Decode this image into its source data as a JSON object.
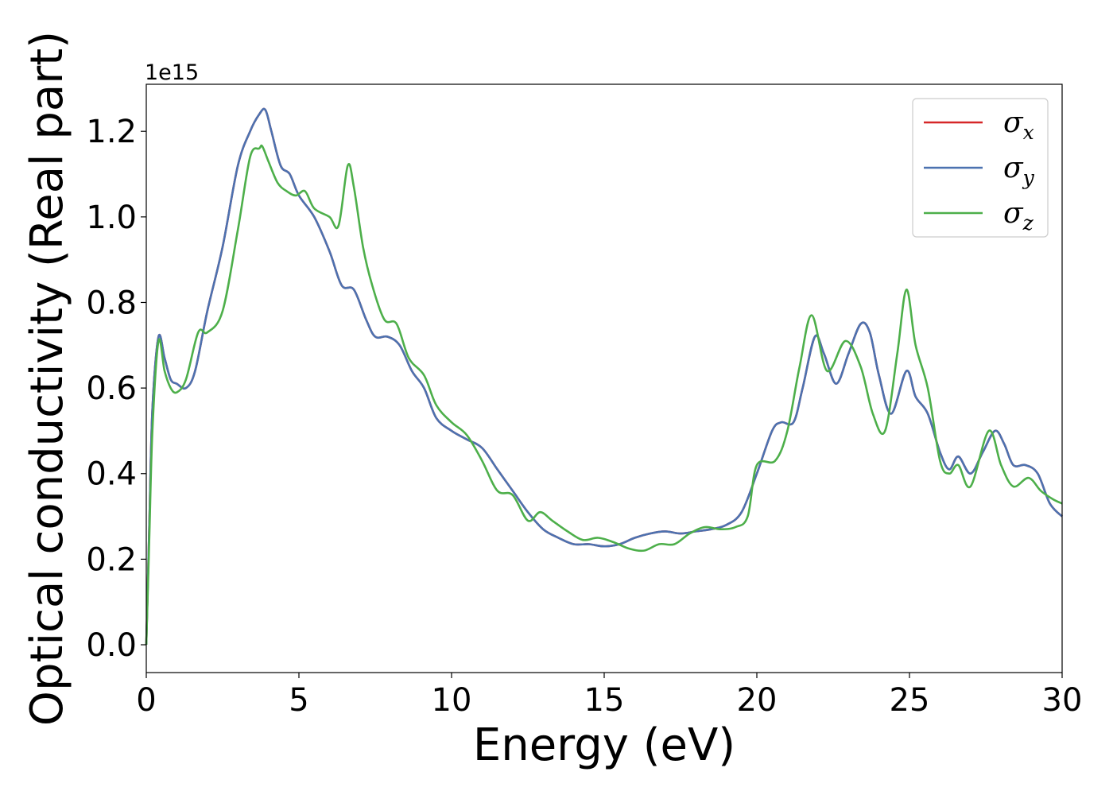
{
  "chart_data": {
    "type": "line",
    "xlabel": "Energy (eV)",
    "ylabel": "Optical conductivity (Real part)",
    "y_offset_text": "1e15",
    "xlim": [
      0,
      30
    ],
    "ylim": [
      -0.065,
      1.31
    ],
    "xticks": [
      0,
      5,
      10,
      15,
      20,
      25,
      30
    ],
    "xtick_labels": [
      "0",
      "5",
      "10",
      "15",
      "20",
      "25",
      "30"
    ],
    "yticks": [
      0.0,
      0.2,
      0.4,
      0.6,
      0.8,
      1.0,
      1.2
    ],
    "ytick_labels": [
      "0.0",
      "0.2",
      "0.4",
      "0.6",
      "0.8",
      "1.0",
      "1.2"
    ],
    "grid": false,
    "legend": {
      "position": "top-right",
      "entries": [
        {
          "symbol": "σ",
          "subscript": "x",
          "color": "#d62728"
        },
        {
          "symbol": "σ",
          "subscript": "y",
          "color": "#4c72b0"
        },
        {
          "symbol": "σ",
          "subscript": "z",
          "color": "#4daf4a"
        }
      ]
    },
    "series": [
      {
        "id": "sigma_x",
        "color": "#d62728",
        "points": [
          [
            0,
            0
          ],
          [
            0.1,
            0.28
          ],
          [
            0.2,
            0.55
          ],
          [
            0.4,
            0.72
          ],
          [
            0.6,
            0.67
          ],
          [
            0.8,
            0.62
          ],
          [
            1.0,
            0.61
          ],
          [
            1.3,
            0.6
          ],
          [
            1.6,
            0.64
          ],
          [
            2.0,
            0.78
          ],
          [
            2.5,
            0.93
          ],
          [
            3.0,
            1.12
          ],
          [
            3.4,
            1.2
          ],
          [
            3.7,
            1.24
          ],
          [
            3.9,
            1.25
          ],
          [
            4.1,
            1.2
          ],
          [
            4.4,
            1.12
          ],
          [
            4.7,
            1.1
          ],
          [
            5.0,
            1.05
          ],
          [
            5.5,
            1.0
          ],
          [
            6.0,
            0.92
          ],
          [
            6.4,
            0.84
          ],
          [
            6.8,
            0.83
          ],
          [
            7.2,
            0.76
          ],
          [
            7.5,
            0.72
          ],
          [
            7.9,
            0.72
          ],
          [
            8.3,
            0.7
          ],
          [
            8.7,
            0.64
          ],
          [
            9.1,
            0.6
          ],
          [
            9.5,
            0.53
          ],
          [
            10.0,
            0.5
          ],
          [
            10.5,
            0.48
          ],
          [
            11.0,
            0.46
          ],
          [
            11.5,
            0.41
          ],
          [
            12.0,
            0.36
          ],
          [
            12.5,
            0.31
          ],
          [
            13.0,
            0.27
          ],
          [
            13.5,
            0.25
          ],
          [
            14.0,
            0.235
          ],
          [
            14.5,
            0.235
          ],
          [
            15.0,
            0.23
          ],
          [
            15.5,
            0.235
          ],
          [
            16.0,
            0.25
          ],
          [
            16.5,
            0.26
          ],
          [
            17.0,
            0.265
          ],
          [
            17.5,
            0.26
          ],
          [
            18.0,
            0.265
          ],
          [
            18.5,
            0.27
          ],
          [
            19.0,
            0.28
          ],
          [
            19.5,
            0.31
          ],
          [
            20.0,
            0.4
          ],
          [
            20.5,
            0.5
          ],
          [
            20.8,
            0.52
          ],
          [
            21.2,
            0.52
          ],
          [
            21.5,
            0.6
          ],
          [
            21.9,
            0.72
          ],
          [
            22.2,
            0.68
          ],
          [
            22.6,
            0.61
          ],
          [
            23.0,
            0.68
          ],
          [
            23.4,
            0.75
          ],
          [
            23.7,
            0.73
          ],
          [
            24.0,
            0.63
          ],
          [
            24.4,
            0.54
          ],
          [
            24.9,
            0.64
          ],
          [
            25.2,
            0.58
          ],
          [
            25.6,
            0.54
          ],
          [
            26.0,
            0.45
          ],
          [
            26.3,
            0.41
          ],
          [
            26.6,
            0.44
          ],
          [
            27.0,
            0.4
          ],
          [
            27.4,
            0.45
          ],
          [
            27.8,
            0.5
          ],
          [
            28.1,
            0.47
          ],
          [
            28.4,
            0.42
          ],
          [
            28.8,
            0.42
          ],
          [
            29.2,
            0.4
          ],
          [
            29.6,
            0.33
          ],
          [
            30.0,
            0.3
          ]
        ]
      },
      {
        "id": "sigma_y",
        "color": "#4c72b0",
        "points": [
          [
            0,
            0
          ],
          [
            0.1,
            0.28
          ],
          [
            0.2,
            0.55
          ],
          [
            0.4,
            0.72
          ],
          [
            0.6,
            0.67
          ],
          [
            0.8,
            0.62
          ],
          [
            1.0,
            0.61
          ],
          [
            1.3,
            0.6
          ],
          [
            1.6,
            0.64
          ],
          [
            2.0,
            0.78
          ],
          [
            2.5,
            0.93
          ],
          [
            3.0,
            1.12
          ],
          [
            3.4,
            1.2
          ],
          [
            3.7,
            1.24
          ],
          [
            3.9,
            1.25
          ],
          [
            4.1,
            1.2
          ],
          [
            4.4,
            1.12
          ],
          [
            4.7,
            1.1
          ],
          [
            5.0,
            1.05
          ],
          [
            5.5,
            1.0
          ],
          [
            6.0,
            0.92
          ],
          [
            6.4,
            0.84
          ],
          [
            6.8,
            0.83
          ],
          [
            7.2,
            0.76
          ],
          [
            7.5,
            0.72
          ],
          [
            7.9,
            0.72
          ],
          [
            8.3,
            0.7
          ],
          [
            8.7,
            0.64
          ],
          [
            9.1,
            0.6
          ],
          [
            9.5,
            0.53
          ],
          [
            10.0,
            0.5
          ],
          [
            10.5,
            0.48
          ],
          [
            11.0,
            0.46
          ],
          [
            11.5,
            0.41
          ],
          [
            12.0,
            0.36
          ],
          [
            12.5,
            0.31
          ],
          [
            13.0,
            0.27
          ],
          [
            13.5,
            0.25
          ],
          [
            14.0,
            0.235
          ],
          [
            14.5,
            0.235
          ],
          [
            15.0,
            0.23
          ],
          [
            15.5,
            0.235
          ],
          [
            16.0,
            0.25
          ],
          [
            16.5,
            0.26
          ],
          [
            17.0,
            0.265
          ],
          [
            17.5,
            0.26
          ],
          [
            18.0,
            0.265
          ],
          [
            18.5,
            0.27
          ],
          [
            19.0,
            0.28
          ],
          [
            19.5,
            0.31
          ],
          [
            20.0,
            0.4
          ],
          [
            20.5,
            0.5
          ],
          [
            20.8,
            0.52
          ],
          [
            21.2,
            0.52
          ],
          [
            21.5,
            0.6
          ],
          [
            21.9,
            0.72
          ],
          [
            22.2,
            0.68
          ],
          [
            22.6,
            0.61
          ],
          [
            23.0,
            0.68
          ],
          [
            23.4,
            0.75
          ],
          [
            23.7,
            0.73
          ],
          [
            24.0,
            0.63
          ],
          [
            24.4,
            0.54
          ],
          [
            24.9,
            0.64
          ],
          [
            25.2,
            0.58
          ],
          [
            25.6,
            0.54
          ],
          [
            26.0,
            0.45
          ],
          [
            26.3,
            0.41
          ],
          [
            26.6,
            0.44
          ],
          [
            27.0,
            0.4
          ],
          [
            27.4,
            0.45
          ],
          [
            27.8,
            0.5
          ],
          [
            28.1,
            0.47
          ],
          [
            28.4,
            0.42
          ],
          [
            28.8,
            0.42
          ],
          [
            29.2,
            0.4
          ],
          [
            29.6,
            0.33
          ],
          [
            30.0,
            0.3
          ]
        ]
      },
      {
        "id": "sigma_z",
        "color": "#4daf4a",
        "points": [
          [
            0,
            0
          ],
          [
            0.1,
            0.25
          ],
          [
            0.2,
            0.5
          ],
          [
            0.4,
            0.71
          ],
          [
            0.6,
            0.64
          ],
          [
            0.8,
            0.6
          ],
          [
            1.0,
            0.59
          ],
          [
            1.3,
            0.62
          ],
          [
            1.7,
            0.73
          ],
          [
            2.0,
            0.73
          ],
          [
            2.5,
            0.78
          ],
          [
            3.0,
            0.97
          ],
          [
            3.4,
            1.14
          ],
          [
            3.7,
            1.16
          ],
          [
            3.8,
            1.165
          ],
          [
            4.0,
            1.13
          ],
          [
            4.3,
            1.08
          ],
          [
            4.6,
            1.06
          ],
          [
            4.9,
            1.05
          ],
          [
            5.2,
            1.06
          ],
          [
            5.5,
            1.02
          ],
          [
            6.0,
            1.0
          ],
          [
            6.3,
            0.98
          ],
          [
            6.6,
            1.12
          ],
          [
            6.8,
            1.07
          ],
          [
            7.1,
            0.93
          ],
          [
            7.4,
            0.84
          ],
          [
            7.8,
            0.76
          ],
          [
            8.2,
            0.75
          ],
          [
            8.6,
            0.67
          ],
          [
            9.1,
            0.63
          ],
          [
            9.5,
            0.56
          ],
          [
            10.0,
            0.52
          ],
          [
            10.5,
            0.49
          ],
          [
            11.0,
            0.43
          ],
          [
            11.5,
            0.36
          ],
          [
            12.0,
            0.35
          ],
          [
            12.5,
            0.29
          ],
          [
            12.9,
            0.31
          ],
          [
            13.3,
            0.29
          ],
          [
            13.8,
            0.265
          ],
          [
            14.3,
            0.245
          ],
          [
            14.8,
            0.25
          ],
          [
            15.3,
            0.24
          ],
          [
            15.8,
            0.225
          ],
          [
            16.3,
            0.22
          ],
          [
            16.8,
            0.235
          ],
          [
            17.3,
            0.235
          ],
          [
            17.8,
            0.26
          ],
          [
            18.3,
            0.275
          ],
          [
            18.8,
            0.27
          ],
          [
            19.3,
            0.275
          ],
          [
            19.7,
            0.3
          ],
          [
            20.0,
            0.42
          ],
          [
            20.6,
            0.43
          ],
          [
            21.0,
            0.5
          ],
          [
            21.4,
            0.65
          ],
          [
            21.8,
            0.77
          ],
          [
            22.3,
            0.64
          ],
          [
            22.9,
            0.71
          ],
          [
            23.4,
            0.65
          ],
          [
            23.8,
            0.54
          ],
          [
            24.2,
            0.5
          ],
          [
            24.6,
            0.68
          ],
          [
            24.9,
            0.83
          ],
          [
            25.2,
            0.7
          ],
          [
            25.6,
            0.6
          ],
          [
            26.0,
            0.43
          ],
          [
            26.3,
            0.4
          ],
          [
            26.6,
            0.42
          ],
          [
            27.0,
            0.37
          ],
          [
            27.6,
            0.5
          ],
          [
            28.0,
            0.42
          ],
          [
            28.4,
            0.37
          ],
          [
            28.9,
            0.39
          ],
          [
            29.3,
            0.36
          ],
          [
            29.7,
            0.34
          ],
          [
            30.0,
            0.33
          ]
        ]
      }
    ]
  }
}
